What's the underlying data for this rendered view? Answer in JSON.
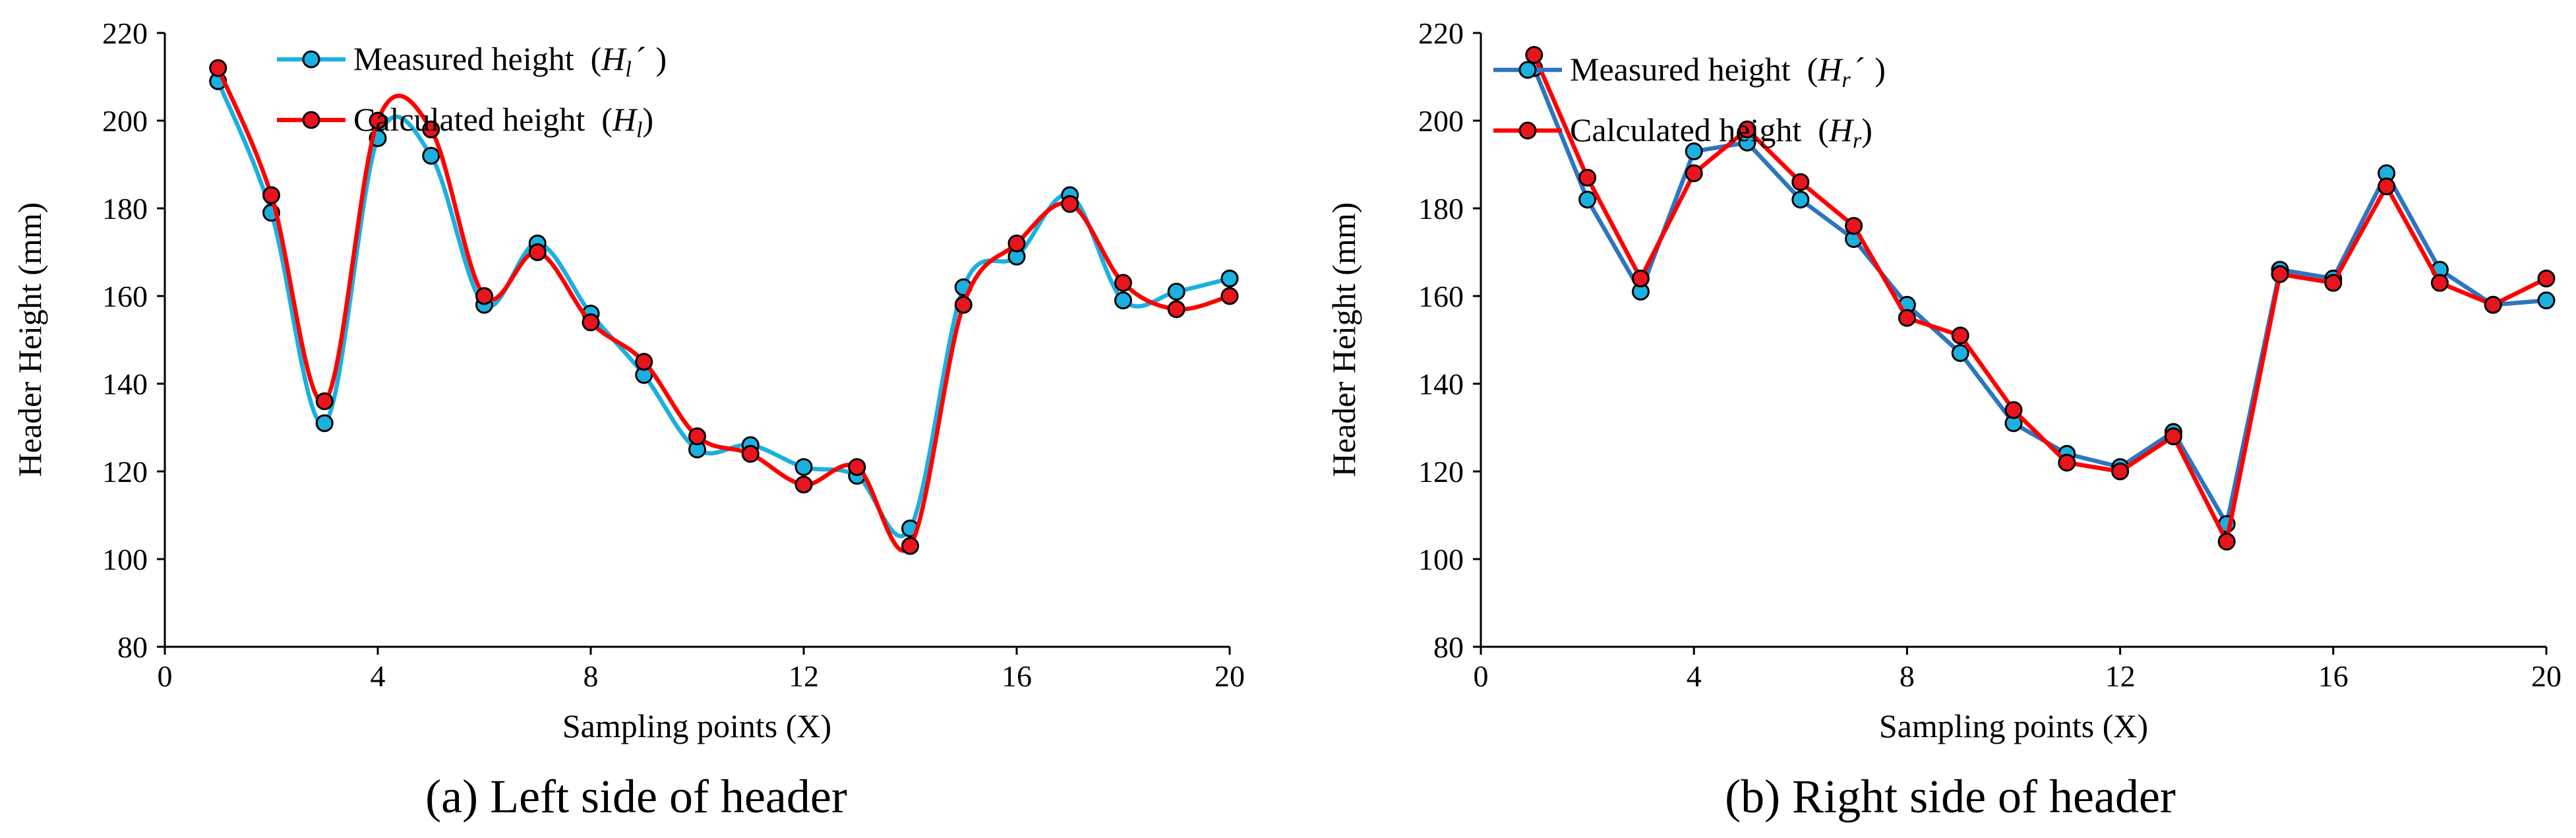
{
  "chart_data": [
    {
      "type": "line",
      "caption": "(a) Left side of header",
      "xlabel": "Sampling points (X)",
      "ylabel": "Header Height (mm)",
      "xlim": [
        0,
        20
      ],
      "ylim": [
        80,
        220
      ],
      "xticks": [
        0,
        4,
        8,
        12,
        16,
        20
      ],
      "yticks": [
        80,
        100,
        120,
        140,
        160,
        180,
        200,
        220
      ],
      "grid": false,
      "legend": "top-center",
      "smooth": true,
      "series": [
        {
          "name": "Measured height",
          "legend_prefix": "Measured height  (",
          "symbol": "H",
          "subscript": "l",
          "mark": "´",
          "legend_suffix": ")",
          "line_color": "#1ab0e0",
          "marker_color": "#1ab0e0",
          "x": [
            1,
            2,
            3,
            4,
            5,
            6,
            7,
            8,
            9,
            10,
            11,
            12,
            13,
            14,
            15,
            16,
            17,
            18,
            19,
            20
          ],
          "y": [
            209,
            179,
            131,
            196,
            192,
            158,
            172,
            156,
            142,
            125,
            126,
            121,
            119,
            107,
            162,
            169,
            183,
            159,
            161,
            164
          ]
        },
        {
          "name": "Calculated height",
          "legend_prefix": "Calculated height  (",
          "symbol": "H",
          "subscript": "l",
          "mark": "",
          "legend_suffix": ")",
          "line_color": "#ff0000",
          "marker_color": "#e8141e",
          "x": [
            1,
            2,
            3,
            4,
            5,
            6,
            7,
            8,
            9,
            10,
            11,
            12,
            13,
            14,
            15,
            16,
            17,
            18,
            19,
            20
          ],
          "y": [
            212,
            183,
            136,
            200,
            198,
            160,
            170,
            154,
            145,
            128,
            124,
            117,
            121,
            103,
            158,
            172,
            181,
            163,
            157,
            160
          ]
        }
      ]
    },
    {
      "type": "line",
      "caption": "(b) Right side of header",
      "xlabel": "Sampling points (X)",
      "ylabel": "Header Height (mm)",
      "xlim": [
        0,
        20
      ],
      "ylim": [
        80,
        220
      ],
      "xticks": [
        0,
        4,
        8,
        12,
        16,
        20
      ],
      "yticks": [
        80,
        100,
        120,
        140,
        160,
        180,
        200,
        220
      ],
      "grid": false,
      "legend": "top-left",
      "smooth": false,
      "series": [
        {
          "name": "Measured height",
          "legend_prefix": "Measured height  (",
          "symbol": "H",
          "subscript": "r",
          "mark": "´",
          "legend_suffix": ")",
          "line_color": "#2e75c0",
          "marker_color": "#1ab0e0",
          "x": [
            1,
            2,
            3,
            4,
            5,
            6,
            7,
            8,
            9,
            10,
            11,
            12,
            13,
            14,
            15,
            16,
            17,
            18,
            19,
            20
          ],
          "y": [
            212,
            182,
            161,
            193,
            195,
            182,
            173,
            158,
            147,
            131,
            124,
            121,
            129,
            108,
            166,
            164,
            188,
            166,
            158,
            159
          ]
        },
        {
          "name": "Calculated height",
          "legend_prefix": "Calculated height  (",
          "symbol": "H",
          "subscript": "r",
          "mark": "",
          "legend_suffix": ")",
          "line_color": "#ff0000",
          "marker_color": "#e8141e",
          "x": [
            1,
            2,
            3,
            4,
            5,
            6,
            7,
            8,
            9,
            10,
            11,
            12,
            13,
            14,
            15,
            16,
            17,
            18,
            19,
            20
          ],
          "y": [
            215,
            187,
            164,
            188,
            198,
            186,
            176,
            155,
            151,
            134,
            122,
            120,
            128,
            104,
            165,
            163,
            185,
            163,
            158,
            164
          ]
        }
      ]
    }
  ]
}
